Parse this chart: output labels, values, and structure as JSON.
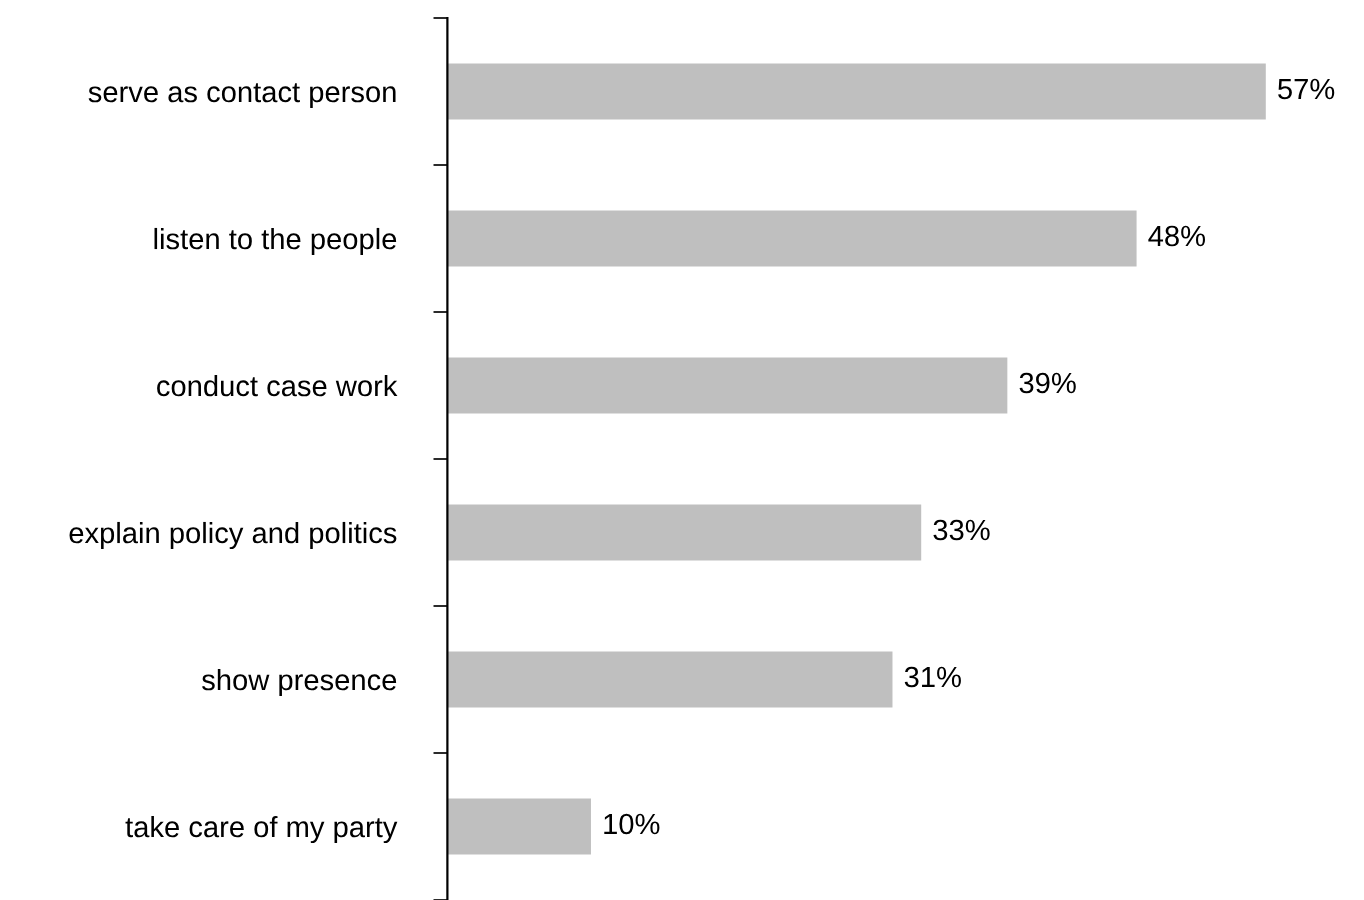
{
  "chart_data": {
    "type": "bar",
    "orientation": "horizontal",
    "categories": [
      "serve as contact person",
      "listen to the people",
      "conduct case work",
      "explain policy and politics",
      "show presence",
      "take care of my party"
    ],
    "values": [
      57,
      48,
      39,
      33,
      31,
      10
    ],
    "value_labels": [
      "57%",
      "48%",
      "39%",
      "33%",
      "31%",
      "10%"
    ],
    "color": "#bfbfbf",
    "grid": false,
    "legend": false
  }
}
